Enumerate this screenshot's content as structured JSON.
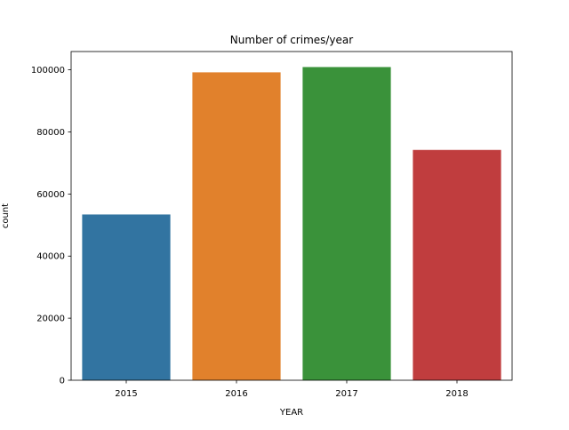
{
  "chart_data": {
    "type": "bar",
    "title": "Number of crimes/year",
    "xlabel": "YEAR",
    "ylabel": "count",
    "categories": [
      "2015",
      "2016",
      "2017",
      "2018"
    ],
    "values": [
      53400,
      99200,
      100900,
      74200
    ],
    "colors": [
      "#3274a1",
      "#e1812c",
      "#3a923a",
      "#c03d3e"
    ],
    "ylim": [
      0,
      105900
    ],
    "yticks": [
      0,
      20000,
      40000,
      60000,
      80000,
      100000
    ],
    "grid": false,
    "legend": "none"
  }
}
